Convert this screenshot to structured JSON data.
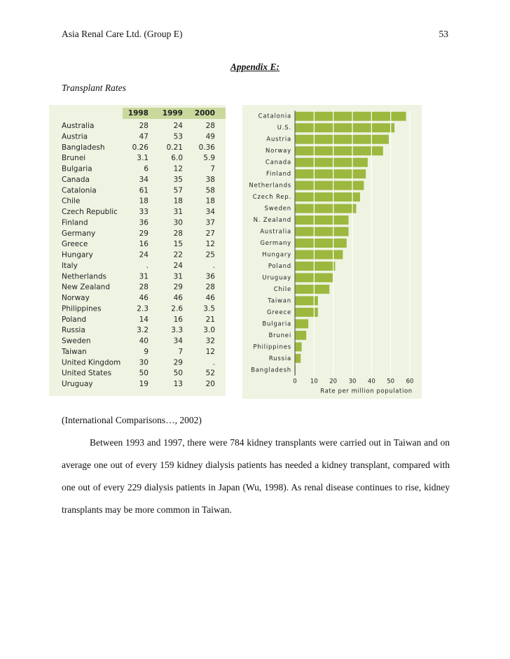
{
  "header": {
    "title": "Asia Renal Care Ltd. (Group E)",
    "page": "53"
  },
  "appendix_title": "Appendix E:",
  "section_title": "Transplant Rates",
  "table": {
    "columns": [
      "1998",
      "1999",
      "2000"
    ],
    "rows": [
      [
        "Australia",
        "28",
        "24",
        "28"
      ],
      [
        "Austria",
        "47",
        "53",
        "49"
      ],
      [
        "Bangladesh",
        "0.26",
        "0.21",
        "0.36"
      ],
      [
        "Brunei",
        "3.1",
        "6.0",
        "5.9"
      ],
      [
        "Bulgaria",
        "6",
        "12",
        "7"
      ],
      [
        "Canada",
        "34",
        "35",
        "38"
      ],
      [
        "Catalonia",
        "61",
        "57",
        "58"
      ],
      [
        "Chile",
        "18",
        "18",
        "18"
      ],
      [
        "Czech Republic",
        "33",
        "31",
        "34"
      ],
      [
        "Finland",
        "36",
        "30",
        "37"
      ],
      [
        "Germany",
        "29",
        "28",
        "27"
      ],
      [
        "Greece",
        "16",
        "15",
        "12"
      ],
      [
        "Hungary",
        "24",
        "22",
        "25"
      ],
      [
        "Italy",
        ".",
        "24",
        "."
      ],
      [
        "Netherlands",
        "31",
        "31",
        "36"
      ],
      [
        "New Zealand",
        "28",
        "29",
        "28"
      ],
      [
        "Norway",
        "46",
        "46",
        "46"
      ],
      [
        "Philippines",
        "2.3",
        "2.6",
        "3.5"
      ],
      [
        "Poland",
        "14",
        "16",
        "21"
      ],
      [
        "Russia",
        "3.2",
        "3.3",
        "3.0"
      ],
      [
        "Sweden",
        "40",
        "34",
        "32"
      ],
      [
        "Taiwan",
        "9",
        "7",
        "12"
      ],
      [
        "United Kingdom",
        "30",
        "29",
        "."
      ],
      [
        "United States",
        "50",
        "50",
        "52"
      ],
      [
        "Uruguay",
        "19",
        "13",
        "20"
      ]
    ]
  },
  "chart_data": {
    "type": "bar",
    "orientation": "horizontal",
    "categories": [
      "Catalonia",
      "U.S.",
      "Austria",
      "Norway",
      "Canada",
      "Finland",
      "Netherlands",
      "Czech Rep.",
      "Sweden",
      "N. Zealand",
      "Australia",
      "Germany",
      "Hungary",
      "Poland",
      "Uruguay",
      "Chile",
      "Taiwan",
      "Greece",
      "Bulgaria",
      "Brunei",
      "Philippines",
      "Russia",
      "Bangladesh"
    ],
    "values": [
      58,
      52,
      49,
      46,
      38,
      37,
      36,
      34,
      32,
      28,
      28,
      27,
      25,
      21,
      20,
      18,
      12,
      12,
      7,
      5.9,
      3.5,
      3.0,
      0.36
    ],
    "color": "#9cb83f",
    "xlim": [
      0,
      60
    ],
    "xticks": [
      0,
      10,
      20,
      30,
      40,
      50,
      60
    ],
    "xlabel": "Rate per million population",
    "grid": true
  },
  "citation": "(International Comparisons…, 2002)",
  "paragraph": "Between 1993 and 1997, there were 784 kidney transplants were carried out in Taiwan and on average one out of every 159 kidney dialysis patients has needed a kidney transplant, compared with one out of every 229 dialysis patients in Japan (Wu, 1998).  As renal disease continues to rise, kidney transplants may be more common in Taiwan."
}
